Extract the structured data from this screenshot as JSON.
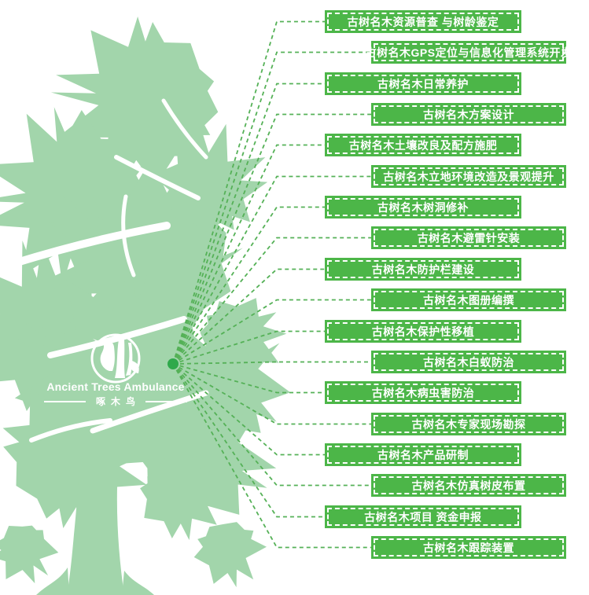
{
  "logo": {
    "title": "Ancient Trees Ambulance",
    "subtitle": "啄木鸟",
    "icon": "woodpecker-icon"
  },
  "diagram": {
    "type": "radial-service-map",
    "colors": {
      "tree": "#a2d5ab",
      "banner": "#4cb648",
      "connector": "#55b157",
      "hub_dot": "#2fa94b",
      "text": "#ffffff"
    },
    "services": [
      {
        "label": "古树名木资源普查 与树龄鉴定"
      },
      {
        "label": "古树名木GPS定位与信息化管理系统开发"
      },
      {
        "label": "古树名木日常养护"
      },
      {
        "label": "古树名木方案设计"
      },
      {
        "label": "古树名木土壤改良及配方施肥"
      },
      {
        "label": "古树名木立地环境改造及景观提升"
      },
      {
        "label": "古树名木树洞修补"
      },
      {
        "label": "古树名木避雷针安装"
      },
      {
        "label": "古树名木防护栏建设"
      },
      {
        "label": "古树名木图册编撰"
      },
      {
        "label": "古树名木保护性移植"
      },
      {
        "label": "古树名木白蚁防治"
      },
      {
        "label": "古树名木病虫害防治"
      },
      {
        "label": "古树名木专家现场勘探"
      },
      {
        "label": "古树名木产品研制"
      },
      {
        "label": "古树名木仿真树皮布置"
      },
      {
        "label": "古树名木项目 资金申报"
      },
      {
        "label": "古树名木跟踪装置"
      }
    ]
  }
}
